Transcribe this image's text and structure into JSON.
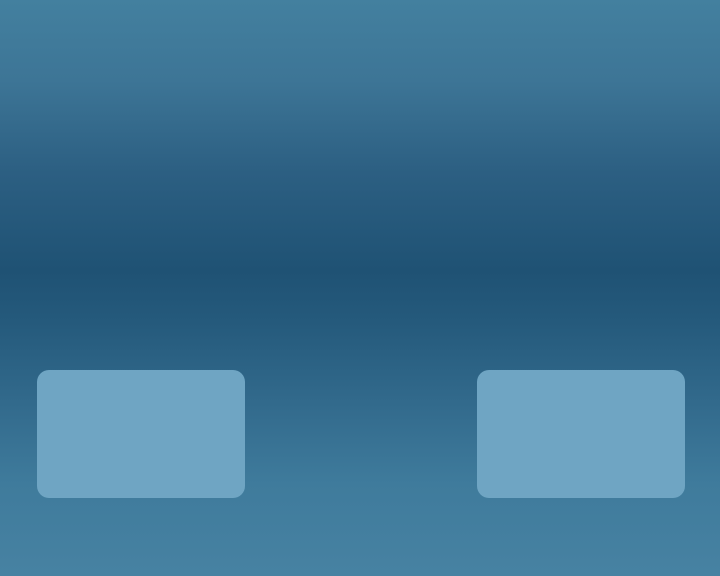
{
  "theme": {
    "background_top": "#43809f",
    "background_band": "#1f5274",
    "background_bottom": "#4782a2",
    "panel_color": "#6fa5c3"
  },
  "panels": [
    {
      "label": ""
    },
    {
      "label": ""
    }
  ]
}
